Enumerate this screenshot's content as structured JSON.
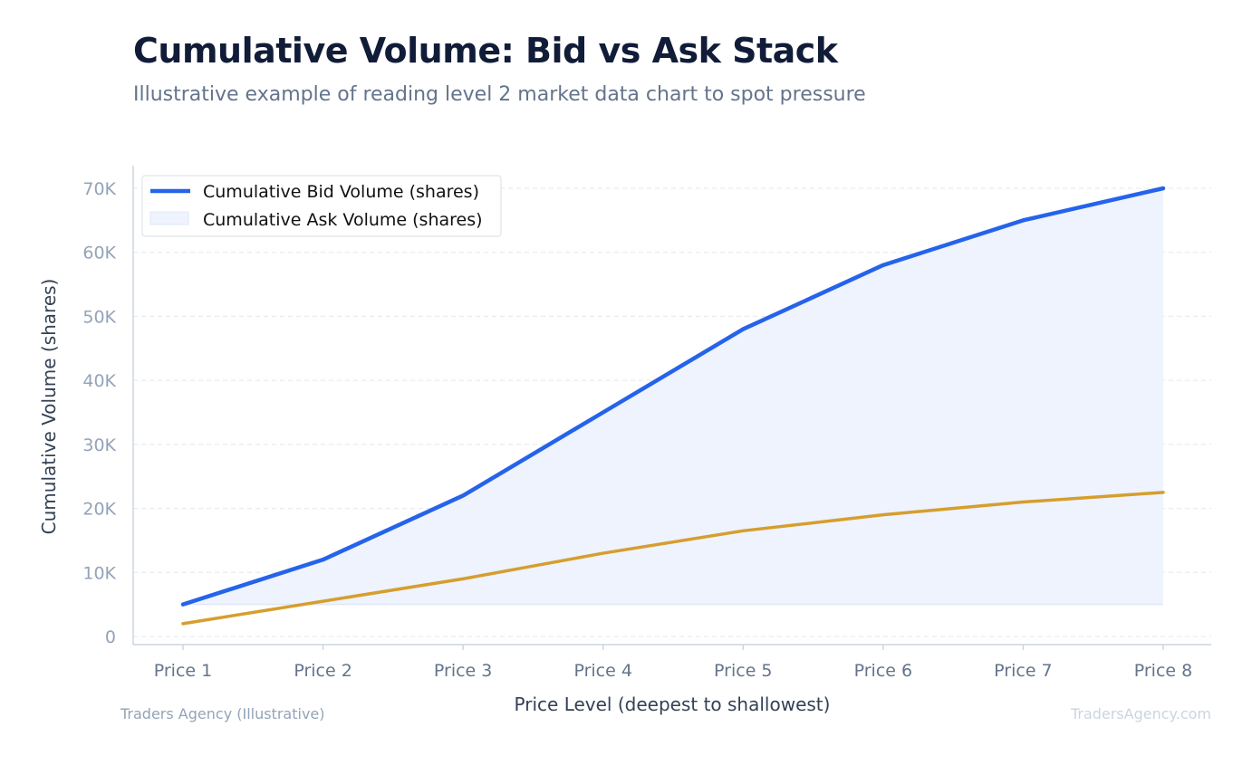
{
  "header": {
    "title": "Cumulative Volume: Bid vs Ask Stack",
    "subtitle": "Illustrative example of reading level 2 market data chart to spot pressure"
  },
  "footer": {
    "source": "Traders Agency (Illustrative)",
    "watermark": "TradersAgency.com"
  },
  "colors": {
    "bid_line": "#2563eb",
    "ask_line": "#d69e2e",
    "fill": "#eef3fd",
    "grid": "#e5e7eb",
    "axis": "#cbd5e1",
    "tick_text": "#94a3b8",
    "xtick_text": "#64748b",
    "label_text": "#334155"
  },
  "chart_data": {
    "type": "line",
    "title": "",
    "xlabel": "Price Level (deepest to shallowest)",
    "ylabel": "Cumulative Volume (shares)",
    "categories": [
      "Price 1",
      "Price 2",
      "Price 3",
      "Price 4",
      "Price 5",
      "Price 6",
      "Price 7",
      "Price 8"
    ],
    "ylim": [
      0,
      70000
    ],
    "yticks": [
      0,
      10000,
      20000,
      30000,
      40000,
      50000,
      60000,
      70000
    ],
    "ytick_labels": [
      "0",
      "10K",
      "20K",
      "30K",
      "40K",
      "50K",
      "60K",
      "70K"
    ],
    "grid": true,
    "legend_position": "top-left",
    "legend": [
      "Cumulative Bid Volume (shares)",
      "Cumulative Ask Volume (shares)"
    ],
    "series": [
      {
        "name": "Cumulative Bid Volume (shares)",
        "values": [
          5000,
          12000,
          22000,
          35000,
          48000,
          58000,
          65000,
          70000
        ]
      },
      {
        "name": "Cumulative Ask Volume (shares)",
        "values": [
          2000,
          5500,
          9000,
          13000,
          16500,
          19000,
          21000,
          22500
        ]
      }
    ],
    "fill_between": {
      "series": "Cumulative Bid Volume (shares)",
      "baseline": 5000
    }
  }
}
